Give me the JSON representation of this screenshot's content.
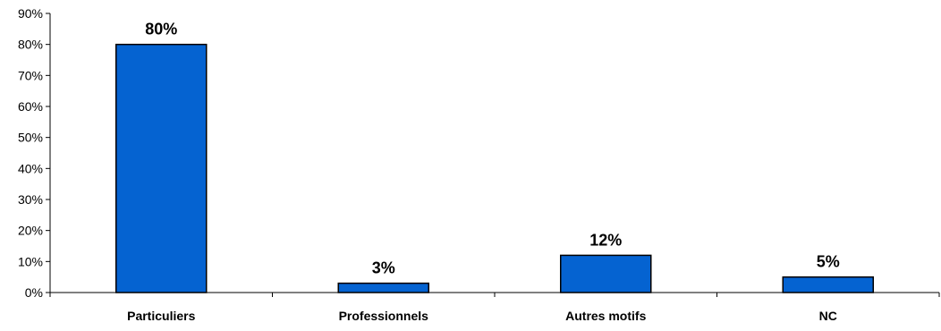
{
  "chart_data": {
    "type": "bar",
    "categories": [
      "Particuliers",
      "Professionnels",
      "Autres motifs",
      "NC"
    ],
    "values": [
      80,
      3,
      12,
      5
    ],
    "data_labels": [
      "80%",
      "3%",
      "12%",
      "5%"
    ],
    "ylim": [
      0,
      90
    ],
    "yticks": [
      0,
      10,
      20,
      30,
      40,
      50,
      60,
      70,
      80,
      90
    ],
    "ytick_labels": [
      "0%",
      "10%",
      "20%",
      "30%",
      "40%",
      "50%",
      "60%",
      "70%",
      "80%",
      "90%"
    ],
    "title": "",
    "xlabel": "",
    "ylabel": "",
    "grid": false,
    "legend": "none",
    "colors": {
      "bar_fill": "#0563D1",
      "bar_stroke": "#000000",
      "axis": "#000000"
    }
  }
}
